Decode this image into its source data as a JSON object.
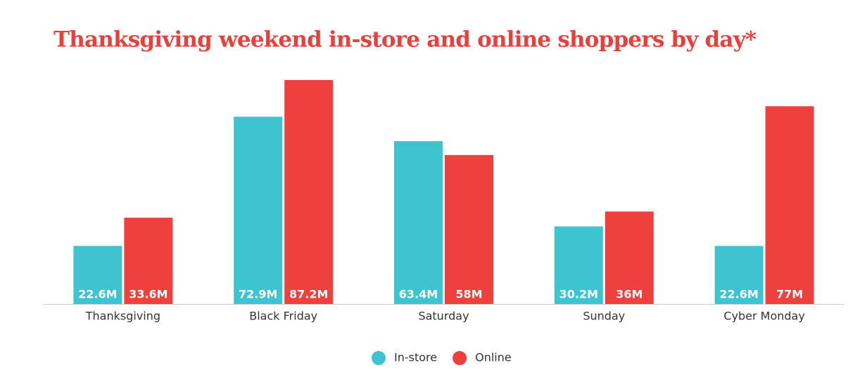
{
  "chart_data": {
    "type": "bar",
    "title": "Thanksgiving weekend in-store and online shoppers by day*",
    "categories": [
      "Thanksgiving",
      "Black Friday",
      "Saturday",
      "Sunday",
      "Cyber Monday"
    ],
    "series": [
      {
        "name": "In-store",
        "color": "#3ec3d0",
        "values": [
          22.6,
          72.9,
          63.4,
          30.2,
          22.6
        ],
        "value_labels": [
          "22.6M",
          "72.9M",
          "63.4M",
          "30.2M",
          "22.6M"
        ]
      },
      {
        "name": "Online",
        "color": "#ee403c",
        "values": [
          33.6,
          87.2,
          58,
          36,
          77
        ],
        "value_labels": [
          "33.6M",
          "87.2M",
          "58M",
          "36M",
          "77M"
        ]
      }
    ]
  }
}
